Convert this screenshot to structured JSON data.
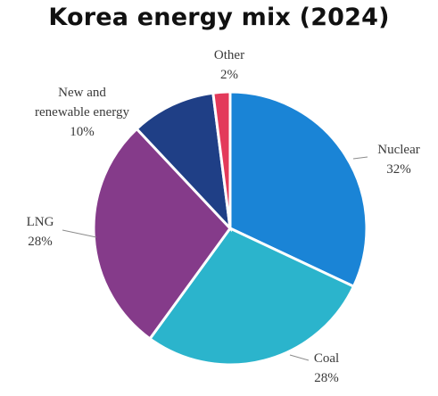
{
  "chart_data": {
    "type": "pie",
    "title": "Korea energy mix (2024)",
    "slices": [
      {
        "label": "Nuclear",
        "value": 32,
        "value_label": "32%",
        "color": "#1a84d6"
      },
      {
        "label": "Coal",
        "value": 28,
        "value_label": "28%",
        "color": "#2bb4cc"
      },
      {
        "label": "LNG",
        "value": 28,
        "value_label": "28%",
        "color": "#853b8a"
      },
      {
        "label_lines": [
          "New and",
          "renewable energy"
        ],
        "value": 10,
        "value_label": "10%",
        "color": "#1f3f86"
      },
      {
        "label": "Other",
        "value": 2,
        "value_label": "2%",
        "color": "#e33a5a"
      }
    ],
    "start": "12 o'clock",
    "direction": "clockwise"
  }
}
